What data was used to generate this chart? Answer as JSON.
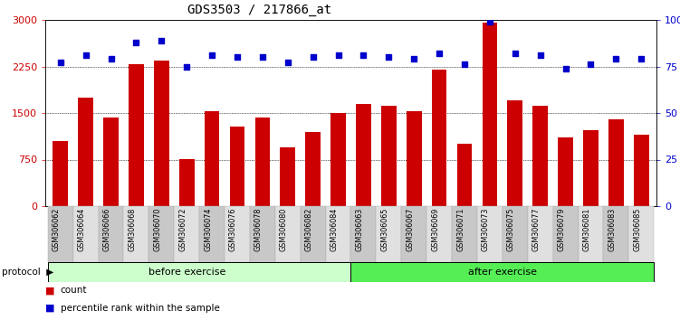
{
  "title": "GDS3503 / 217866_at",
  "samples": [
    "GSM306062",
    "GSM306064",
    "GSM306066",
    "GSM306068",
    "GSM306070",
    "GSM306072",
    "GSM306074",
    "GSM306076",
    "GSM306078",
    "GSM306080",
    "GSM306082",
    "GSM306084",
    "GSM306063",
    "GSM306065",
    "GSM306067",
    "GSM306069",
    "GSM306071",
    "GSM306073",
    "GSM306075",
    "GSM306077",
    "GSM306079",
    "GSM306081",
    "GSM306083",
    "GSM306085"
  ],
  "counts": [
    1050,
    1750,
    1430,
    2280,
    2350,
    760,
    1530,
    1280,
    1430,
    950,
    1200,
    1500,
    1650,
    1620,
    1530,
    2200,
    1000,
    2950,
    1700,
    1620,
    1100,
    1230,
    1400,
    1150
  ],
  "percentiles": [
    77,
    81,
    79,
    88,
    89,
    75,
    81,
    80,
    80,
    77,
    80,
    81,
    81,
    80,
    79,
    82,
    76,
    99,
    82,
    81,
    74,
    76,
    79,
    79
  ],
  "n_before": 12,
  "n_after": 12,
  "bar_color": "#cc0000",
  "dot_color": "#0000cc",
  "before_color": "#ccffcc",
  "after_color": "#55ee55",
  "protocol_label": "protocol",
  "before_label": "before exercise",
  "after_label": "after exercise",
  "legend_count": "count",
  "legend_percentile": "percentile rank within the sample",
  "ylim_left": [
    0,
    3000
  ],
  "ylim_right": [
    0,
    100
  ],
  "yticks_left": [
    0,
    750,
    1500,
    2250,
    3000
  ],
  "ytick_labels_left": [
    "0",
    "750",
    "1500",
    "2250",
    "3000"
  ],
  "yticks_right": [
    0,
    25,
    50,
    75,
    100
  ],
  "ytick_labels_right": [
    "0",
    "25",
    "50",
    "75",
    "100%"
  ],
  "grid_values": [
    750,
    1500,
    2250
  ]
}
